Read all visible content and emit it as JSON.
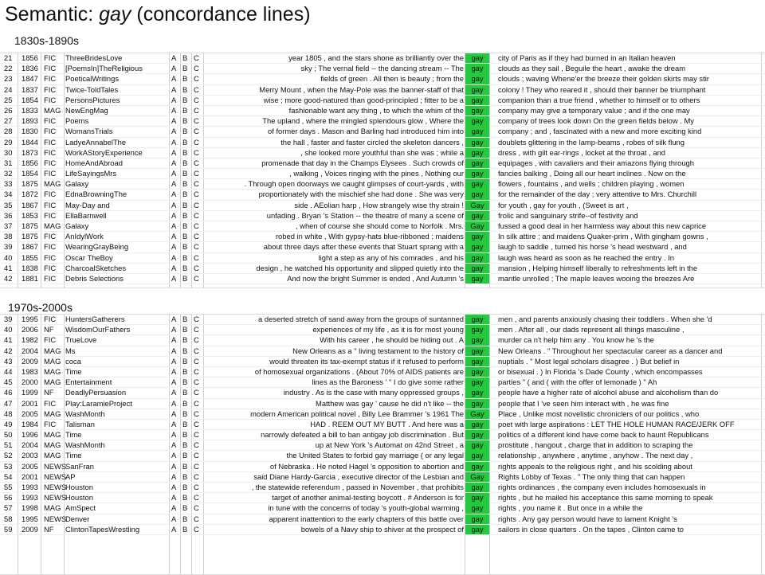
{
  "title": {
    "prefix": "Semantic: ",
    "keyword": "gay",
    "suffix": " (concordance lines)"
  },
  "sections": [
    {
      "label": "1830s-1890s",
      "rows": [
        {
          "n": "21",
          "year": "1856",
          "genre": "FIC",
          "source": "ThreeBridesLove",
          "a": "A",
          "b": "B",
          "c": "C",
          "left": "year 1805 , and the stars shone as brilliantly over the",
          "node": "gay",
          "right": "city of Paris as if they had burned in an Italian heaven"
        },
        {
          "n": "22",
          "year": "1836",
          "genre": "FIC",
          "source": "[PoemsIn]TheReligious",
          "a": "A",
          "b": "B",
          "c": "C",
          "left": "sky ; The vernal field -- the dancing stream -- The",
          "node": "gay",
          "right": "clouds as they sail , Beguile the heart , awake the dream"
        },
        {
          "n": "23",
          "year": "1847",
          "genre": "FIC",
          "source": "PoeticalWritings",
          "a": "A",
          "b": "B",
          "c": "C",
          "left": "fields of green . All then is beauty ; from the",
          "node": "gay",
          "right": "clouds ; waving Whene'er the breeze their golden skirts may stir"
        },
        {
          "n": "24",
          "year": "1837",
          "genre": "FIC",
          "source": "Twice-ToldTales",
          "a": "A",
          "b": "B",
          "c": "C",
          "left": "Merry Mount , when the May-Pole was the banner-staff of that",
          "node": "gay",
          "right": "colony ! They who reared it , should their banner be triumphant"
        },
        {
          "n": "25",
          "year": "1854",
          "genre": "FIC",
          "source": "PersonsPictures",
          "a": "A",
          "b": "B",
          "c": "C",
          "left": "wise ; more good-natured than good-principled ; fitter to be a",
          "node": "gay",
          "right": "companion than a true friend , whether to himself or to others"
        },
        {
          "n": "26",
          "year": "1833",
          "genre": "MAG",
          "source": "NewEngMag",
          "a": "A",
          "b": "B",
          "c": "C",
          "left": "fashionable want any thing , to which the whim of the",
          "node": "gay",
          "right": "company may give a temporary value ; and if the one may"
        },
        {
          "n": "27",
          "year": "1893",
          "genre": "FIC",
          "source": "Poems",
          "a": "A",
          "b": "B",
          "c": "C",
          "left": "The upland , where the mingled splendours glow , Where the",
          "node": "gay",
          "right": "company of trees look down On the green fields below . My"
        },
        {
          "n": "28",
          "year": "1830",
          "genre": "FIC",
          "source": "WomansTrials",
          "a": "A",
          "b": "B",
          "c": "C",
          "left": "of former days . Mason and Barling had introduced him into",
          "node": "gay",
          "right": "company ; and , fascinated with a new and more exciting kind"
        },
        {
          "n": "29",
          "year": "1844",
          "genre": "FIC",
          "source": "LadyeAnnabelThe",
          "a": "A",
          "b": "B",
          "c": "C",
          "left": "the hall , faster and faster circled the skeleton dancers ,",
          "node": "gay",
          "right": "doublets glittering in the lamp-beams , robes of silk flung"
        },
        {
          "n": "30",
          "year": "1873",
          "genre": "FIC",
          "source": "WorkAStoryExperience",
          "a": "A",
          "b": "B",
          "c": "C",
          "left": ", she looked more youthful than she was ; while a",
          "node": "gay",
          "right": "dress , with gilt ear-rings , locket at the throat , and"
        },
        {
          "n": "31",
          "year": "1856",
          "genre": "FIC",
          "source": "HomeAndAbroad",
          "a": "A",
          "b": "B",
          "c": "C",
          "left": "promenade that day in the Champs Elysees . Such crowds of",
          "node": "gay",
          "right": "equipages , with cavaliers and their amazons flying through"
        },
        {
          "n": "32",
          "year": "1854",
          "genre": "FIC",
          "source": "LifeSayingsMrs",
          "a": "A",
          "b": "B",
          "c": "C",
          "left": ", walking , Voices ringing with the pines , Nothing our",
          "node": "gay",
          "right": "fancies balking , Doing all our heart inclines . Now on the"
        },
        {
          "n": "33",
          "year": "1875",
          "genre": "MAG",
          "source": "Galaxy",
          "a": "A",
          "b": "B",
          "c": "C",
          "left": ". Through open doorways we caught glimpses of court-yards , with",
          "node": "gay",
          "right": "flowers , fountains , and wells ; children playing , women"
        },
        {
          "n": "34",
          "year": "1872",
          "genre": "FIC",
          "source": "EdnaBrowningThe",
          "a": "A",
          "b": "B",
          "c": "C",
          "left": "proportionately with the mischief she had done . She was very",
          "node": "gay",
          "right": "for the remainder of the day ; very attentive to Mrs. Churchill"
        },
        {
          "n": "35",
          "year": "1867",
          "genre": "FIC",
          "source": "May-Day and",
          "a": "A",
          "b": "B",
          "c": "C",
          "left": "side . AEolian harp , How strangely wise thy strain !",
          "node": "Gay",
          "right": "for youth , gay for youth , (Sweet is art ,"
        },
        {
          "n": "36",
          "year": "1853",
          "genre": "FIC",
          "source": "EllaBarnwell",
          "a": "A",
          "b": "B",
          "c": "C",
          "left": "unfading . Bryan 's Station -- the theatre of many a scene of",
          "node": "gay",
          "right": "frolic and sanguinary strife--of festivity and"
        },
        {
          "n": "37",
          "year": "1875",
          "genre": "MAG",
          "source": "Galaxy",
          "a": "A",
          "b": "B",
          "c": "C",
          "left": ", when of course she should come to Norfolk . Mrs.",
          "node": "Gay",
          "right": "fussed a good deal in her harmless way about this new caprice"
        },
        {
          "n": "38",
          "year": "1875",
          "genre": "FIC",
          "source": "AnIdylWork",
          "a": "A",
          "b": "B",
          "c": "C",
          "left": "robed in white , With gypsy-hats blue-ribboned ; maidens",
          "node": "gay",
          "right": "In silk attire ; and maidens Quaker-prim , With gingham gowns ,"
        },
        {
          "n": "39",
          "year": "1867",
          "genre": "FIC",
          "source": "WearingGrayBeing",
          "a": "A",
          "b": "B",
          "c": "C",
          "left": "about three days after these events that Stuart sprang with a",
          "node": "gay",
          "right": "laugh to saddle , turned his horse 's head westward , and"
        },
        {
          "n": "40",
          "year": "1855",
          "genre": "FIC",
          "source": "Oscar TheBoy",
          "a": "A",
          "b": "B",
          "c": "C",
          "left": "light a step as any of his comrades , and his",
          "node": "gay",
          "right": "laugh was heard as soon as he reached the entry . In"
        },
        {
          "n": "41",
          "year": "1838",
          "genre": "FIC",
          "source": "CharcoalSketches",
          "a": "A",
          "b": "B",
          "c": "C",
          "left": "design , he watched his opportunity and slipped quietly into the",
          "node": "gay",
          "right": "mansion , Helping himself liberally to refreshments left in the"
        },
        {
          "n": "42",
          "year": "1881",
          "genre": "FIC",
          "source": "Debris Selections",
          "a": "A",
          "b": "B",
          "c": "C",
          "left": "And now the bright Summer is ended , And Autumn 's",
          "node": "gay",
          "right": "mantle unrolled ; The maple leaves wooing the breezes Are"
        }
      ]
    },
    {
      "label": "1970s-2000s",
      "rows": [
        {
          "n": "39",
          "year": "1995",
          "genre": "FIC",
          "source": "HuntersGatherers",
          "a": "A",
          "b": "B",
          "c": "C",
          "left": "a deserted stretch of sand away from the groups of suntanned",
          "node": "gay",
          "right": "men , and parents anxiously chasing their toddlers . When she 'd"
        },
        {
          "n": "40",
          "year": "2006",
          "genre": "NF",
          "source": "WisdomOurFathers",
          "a": "A",
          "b": "B",
          "c": "C",
          "left": "experiences of my life , as it is for most young",
          "node": "gay",
          "right": "men . After all , our dads represent all things masculine ,"
        },
        {
          "n": "41",
          "year": "1982",
          "genre": "FIC",
          "source": "TrueLove",
          "a": "A",
          "b": "B",
          "c": "C",
          "left": "With his career , he should be hiding out . A",
          "node": "gay",
          "right": "murder ca n't help him any . You know he 's the"
        },
        {
          "n": "42",
          "year": "2004",
          "genre": "MAG",
          "source": "Ms",
          "a": "A",
          "b": "B",
          "c": "C",
          "left": "New Orleans as a \" living testament to the history of",
          "node": "gay",
          "right": "New Orleans . \" Throughout her spectacular career as a dancer and"
        },
        {
          "n": "43",
          "year": "2009",
          "genre": "MAG",
          "source": "coca",
          "a": "A",
          "b": "B",
          "c": "C",
          "left": "would threaten its tax-exempt status if it refused to perform",
          "node": "gay",
          "right": "nuptials . \" Most legal scholars disagree . ) But belief in"
        },
        {
          "n": "44",
          "year": "1983",
          "genre": "MAG",
          "source": "Time",
          "a": "A",
          "b": "B",
          "c": "C",
          "left": "of homosexual organizations . (About 70% of AIDS patients are",
          "node": "gay",
          "right": "or bisexual . ) In Florida 's Dade County , which encompasses"
        },
        {
          "n": "45",
          "year": "2000",
          "genre": "MAG",
          "source": "Entertainment",
          "a": "A",
          "b": "B",
          "c": "C",
          "left": "lines as the Baroness ' \" I do give some rather",
          "node": "gay",
          "right": "parties \" ( and ( with the offer of lemonade ) \" Ah"
        },
        {
          "n": "46",
          "year": "1999",
          "genre": "NF",
          "source": "DeadlyPersuasion",
          "a": "A",
          "b": "B",
          "c": "C",
          "left": "industry . As is the case with many oppressed groups ,",
          "node": "gay",
          "right": "people have a higher rate of alcohol abuse and alcoholism than do"
        },
        {
          "n": "47",
          "year": "2001",
          "genre": "FIC",
          "source": "Play:LaramieProject",
          "a": "A",
          "b": "B",
          "c": "C",
          "left": "Matthew was gay ' cause he did n't like -- the",
          "node": "gay",
          "right": "people that I 've seen him interact with , he was fine"
        },
        {
          "n": "48",
          "year": "2005",
          "genre": "MAG",
          "source": "WashMonth",
          "a": "A",
          "b": "B",
          "c": "C",
          "left": "modern American political novel , Billy Lee Brammer 's 1961 The",
          "node": "Gay",
          "right": "Place , Unlike most novelistic chroniclers of our politics , who"
        },
        {
          "n": "49",
          "year": "1984",
          "genre": "FIC",
          "source": "Talisman",
          "a": "A",
          "b": "B",
          "c": "C",
          "left": "HAD . REEM OUT MY BUTT . And here was a",
          "node": "gay",
          "right": "poet with large aspirations : LET THE HOLE HUMAN RACE/JERK OFF"
        },
        {
          "n": "50",
          "year": "1996",
          "genre": "MAG",
          "source": "Time",
          "a": "A",
          "b": "B",
          "c": "C",
          "left": "narrowly defeated a bill to ban antigay job discrimination . But",
          "node": "gay",
          "right": "politics of a different kind have come back to haunt Republicans"
        },
        {
          "n": "51",
          "year": "2004",
          "genre": "MAG",
          "source": "WashMonth",
          "a": "A",
          "b": "B",
          "c": "C",
          "left": "up at New York 's Automat on 42nd Street , a",
          "node": "gay",
          "right": "prostitute , hangout , charge that in addition to scraping the"
        },
        {
          "n": "52",
          "year": "2003",
          "genre": "MAG",
          "source": "Time",
          "a": "A",
          "b": "B",
          "c": "C",
          "left": "the United States to forbid gay marriage ( or any legal",
          "node": "gay",
          "right": "relationship , anywhere , anytime , anyhow . The next day ,"
        },
        {
          "n": "53",
          "year": "2005",
          "genre": "NEWS",
          "source": "SanFran",
          "a": "A",
          "b": "B",
          "c": "C",
          "left": "of Nebraska . He noted Hagel 's opposition to abortion and",
          "node": "gay",
          "right": "rights appeals to the religious right , and his scolding about"
        },
        {
          "n": "54",
          "year": "2001",
          "genre": "NEWS",
          "source": "AP",
          "a": "A",
          "b": "B",
          "c": "C",
          "left": "said Diane Hardy-Garcia , executive director of the Lesbian and",
          "node": "Gay",
          "right": "Rights Lobby of Texas . \" The only thing that can happen"
        },
        {
          "n": "55",
          "year": "1993",
          "genre": "NEWS",
          "source": "Houston",
          "a": "A",
          "b": "B",
          "c": "C",
          "left": ", the statewide referendum , passed in November , that prohibits",
          "node": "gay",
          "right": "rights ordinances , the company even includes homosexuals in"
        },
        {
          "n": "56",
          "year": "1993",
          "genre": "NEWS",
          "source": "Houston",
          "a": "A",
          "b": "B",
          "c": "C",
          "left": "target of another animal-testing boycott . # Anderson is for",
          "node": "gay",
          "right": "rights , but he mailed his acceptance this same morning to speak"
        },
        {
          "n": "57",
          "year": "1998",
          "genre": "MAG",
          "source": "AmSpect",
          "a": "A",
          "b": "B",
          "c": "C",
          "left": "in tune with the concerns of today 's youth-global warming ,",
          "node": "gay",
          "right": "rights , you name it . But once in a while the"
        },
        {
          "n": "58",
          "year": "1995",
          "genre": "NEWS",
          "source": "Denver",
          "a": "A",
          "b": "B",
          "c": "C",
          "left": "apparent inattention to the early chapters of this battle over",
          "node": "gay",
          "right": "rights . Any gay person would have to lament Knight 's"
        },
        {
          "n": "59",
          "year": "2009",
          "genre": "NF",
          "source": "ClintonTapesWrestling",
          "a": "A",
          "b": "B",
          "c": "C",
          "left": "bowels of a Navy ship to shiver at the prospect of",
          "node": "gay",
          "right": "sailors in close quarters . On the tapes , Clinton came to"
        }
      ]
    }
  ],
  "colors": {
    "node_highlight": "#25c940",
    "grid_line": "#eeeeee"
  }
}
